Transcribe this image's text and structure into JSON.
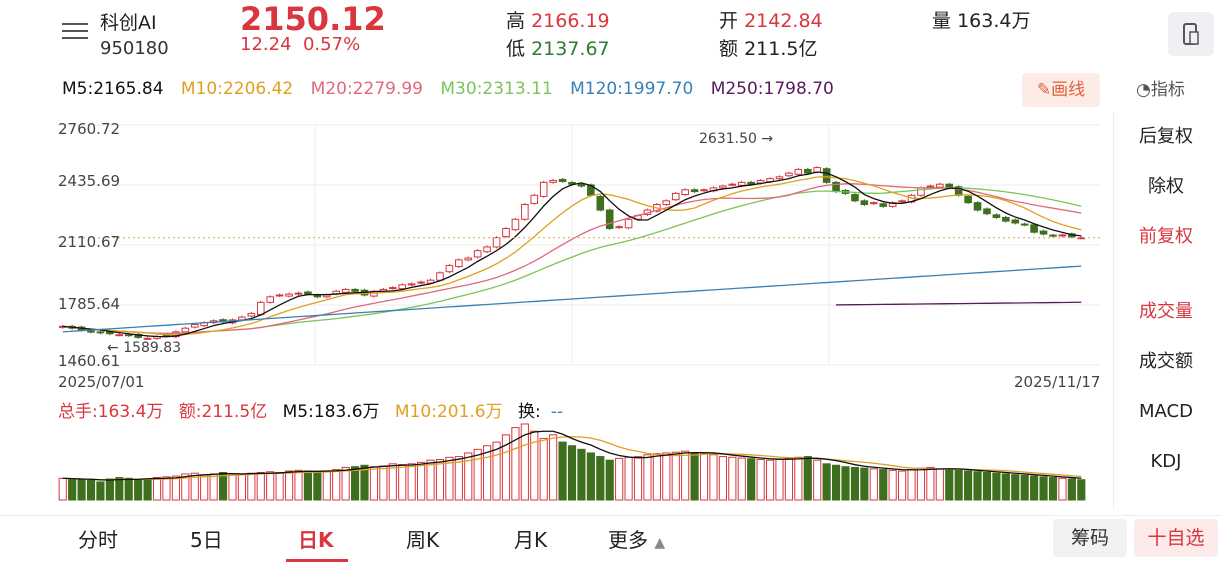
{
  "header": {
    "name": "科创AI",
    "code": "950180",
    "price": "2150.12",
    "change": "12.24",
    "change_pct": "0.57%",
    "high_label": "高",
    "high": "2166.19",
    "low_label": "低",
    "low": "2137.67",
    "open_label": "开",
    "open": "2142.84",
    "amount_label": "额",
    "amount": "211.5亿",
    "volume_label": "量",
    "volume": "163.4万"
  },
  "ma": {
    "m5": "M5:2165.84",
    "m10": "M10:2206.42",
    "m20": "M20:2279.99",
    "m30": "M30:2313.11",
    "m120": "M120:1997.70",
    "m250": "M250:1798.70",
    "colors": {
      "m5": "#111111",
      "m10": "#e0a020",
      "m20": "#e06a7a",
      "m30": "#7cc45a",
      "m120": "#3a7fb5",
      "m250": "#5a1a5a"
    }
  },
  "draw_button": "画线",
  "indicator_label": "指标",
  "side_menu": {
    "items": [
      "后复权",
      "除权",
      "前复权",
      "成交量",
      "成交额",
      "MACD",
      "KDJ"
    ],
    "active": [
      "前复权",
      "成交量"
    ]
  },
  "chart": {
    "y_ticks": [
      "2760.72",
      "2435.69",
      "2110.67",
      "1785.64",
      "1460.61"
    ],
    "x_start": "2025/07/01",
    "x_end": "2025/11/17",
    "max_annotation": "2631.50",
    "min_annotation": "1589.83"
  },
  "volume_row": {
    "total": "总手:163.4万",
    "amount": "额:211.5亿",
    "m5": "M5:183.6万",
    "m10": "M10:201.6万",
    "turnover": "换:",
    "turnover_val": "--"
  },
  "tabs": [
    "分时",
    "5日",
    "日K",
    "周K",
    "月K",
    "更多"
  ],
  "active_tab": "日K",
  "chips": [
    "筹码",
    "十自选"
  ],
  "chart_data": {
    "type": "candlestick",
    "y_range": [
      1460.61,
      2760.72
    ],
    "closes": [
      1670,
      1660,
      1650,
      1640,
      1635,
      1630,
      1625,
      1620,
      1610,
      1605,
      1615,
      1620,
      1640,
      1660,
      1680,
      1690,
      1700,
      1695,
      1705,
      1720,
      1740,
      1800,
      1830,
      1840,
      1845,
      1850,
      1845,
      1830,
      1840,
      1860,
      1870,
      1860,
      1840,
      1860,
      1870,
      1880,
      1895,
      1900,
      1910,
      1920,
      1960,
      2000,
      2030,
      2040,
      2080,
      2100,
      2150,
      2200,
      2250,
      2330,
      2380,
      2450,
      2460,
      2455,
      2440,
      2430,
      2380,
      2300,
      2200,
      2210,
      2250,
      2270,
      2300,
      2330,
      2350,
      2390,
      2410,
      2400,
      2410,
      2420,
      2430,
      2440,
      2450,
      2440,
      2460,
      2470,
      2480,
      2500,
      2520,
      2500,
      2530,
      2450,
      2400,
      2390,
      2350,
      2330,
      2340,
      2320,
      2340,
      2350,
      2380,
      2420,
      2430,
      2440,
      2420,
      2380,
      2340,
      2300,
      2280,
      2260,
      2240,
      2230,
      2220,
      2180,
      2170,
      2160,
      2165,
      2155,
      2150
    ],
    "volume": [
      60,
      58,
      56,
      55,
      50,
      58,
      62,
      60,
      56,
      58,
      62,
      64,
      66,
      72,
      74,
      70,
      72,
      76,
      72,
      70,
      74,
      76,
      78,
      76,
      80,
      82,
      80,
      78,
      80,
      84,
      90,
      92,
      96,
      92,
      94,
      100,
      98,
      100,
      104,
      110,
      112,
      118,
      120,
      130,
      140,
      150,
      160,
      180,
      200,
      210,
      190,
      170,
      180,
      160,
      150,
      140,
      130,
      120,
      110,
      115,
      118,
      120,
      125,
      128,
      130,
      132,
      135,
      130,
      128,
      125,
      120,
      118,
      116,
      114,
      112,
      110,
      112,
      116,
      118,
      120,
      110,
      100,
      96,
      92,
      90,
      88,
      86,
      84,
      82,
      80,
      84,
      88,
      90,
      86,
      84,
      82,
      80,
      78,
      76,
      74,
      72,
      70,
      68,
      66,
      64,
      62,
      60,
      58,
      56
    ]
  }
}
